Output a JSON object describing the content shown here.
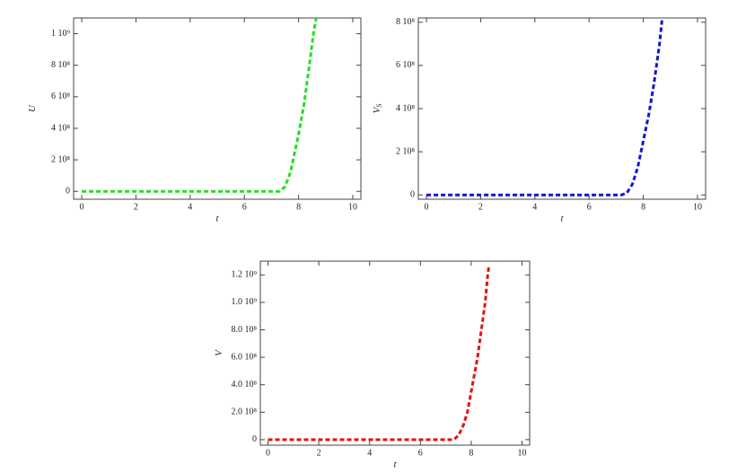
{
  "chart_data": [
    {
      "type": "line",
      "x_label": "t",
      "y_label": "U",
      "color": "#22e022",
      "x": [
        0,
        1,
        2,
        3,
        4,
        5,
        6,
        7,
        7.3,
        7.5,
        7.7,
        7.8,
        8.0,
        8.2,
        8.4,
        8.55,
        8.65
      ],
      "values": [
        0,
        0,
        0,
        0,
        0,
        0,
        0,
        0,
        0,
        30000000,
        120000000,
        200000000,
        360000000,
        550000000,
        800000000,
        1000000000,
        1100000000
      ],
      "xlim": [
        -0.3,
        10.3
      ],
      "xticks": [
        0,
        2,
        4,
        6,
        8,
        10
      ],
      "ylim": [
        -50000000,
        1100000000
      ],
      "yticks": [
        0,
        {
          "value": 200000000,
          "label": "2 10⁸"
        },
        {
          "value": 400000000,
          "label": "4 10⁸"
        },
        {
          "value": 600000000,
          "label": "6 10⁸"
        },
        {
          "value": 800000000,
          "label": "8 10⁸"
        },
        {
          "value": 1000000000,
          "label": "1 10⁹"
        }
      ]
    },
    {
      "type": "line",
      "x_label": "t",
      "y_label": "V",
      "y_label_subscript": "S",
      "color": "#1414d2",
      "x": [
        0,
        1,
        2,
        3,
        4,
        5,
        6,
        7,
        7.2,
        7.4,
        7.6,
        7.8,
        8.0,
        8.2,
        8.4,
        8.6,
        8.7
      ],
      "values": [
        0,
        0,
        0,
        0,
        0,
        0,
        0,
        0,
        0,
        10000000,
        50000000,
        130000000,
        250000000,
        370000000,
        520000000,
        700000000,
        820000000
      ],
      "xlim": [
        -0.3,
        10.3
      ],
      "xticks": [
        0,
        2,
        4,
        6,
        8,
        10
      ],
      "ylim": [
        -20000000,
        820000000
      ],
      "yticks": [
        0,
        {
          "value": 200000000,
          "label": "2 10⁸"
        },
        {
          "value": 400000000,
          "label": "4 10⁸"
        },
        {
          "value": 600000000,
          "label": "6 10⁸"
        },
        {
          "value": 800000000,
          "label": "8 10⁸"
        }
      ]
    },
    {
      "type": "line",
      "x_label": "t",
      "y_label": "V",
      "color": "#e01414",
      "x": [
        0,
        1,
        2,
        3,
        4,
        5,
        6,
        7,
        7.3,
        7.5,
        7.7,
        7.85,
        8.05,
        8.25,
        8.4,
        8.55,
        8.65,
        8.7
      ],
      "values": [
        0,
        0,
        0,
        0,
        0,
        0,
        0,
        0,
        0,
        30000000,
        110000000,
        200000000,
        400000000,
        600000000,
        800000000,
        1000000000,
        1200000000,
        1270000000
      ],
      "xlim": [
        -0.3,
        10.3
      ],
      "xticks": [
        0,
        2,
        4,
        6,
        8,
        10
      ],
      "ylim": [
        -40000000,
        1300000000
      ],
      "yticks": [
        0,
        {
          "value": 200000000,
          "label": "2.0 10⁸"
        },
        {
          "value": 400000000,
          "label": "4.0 10⁸"
        },
        {
          "value": 600000000,
          "label": "6.0 10⁸"
        },
        {
          "value": 800000000,
          "label": "8.0 10⁸"
        },
        {
          "value": 1000000000,
          "label": "1.0 10⁹"
        },
        {
          "value": 1200000000,
          "label": "1.2 10⁹"
        }
      ]
    }
  ]
}
